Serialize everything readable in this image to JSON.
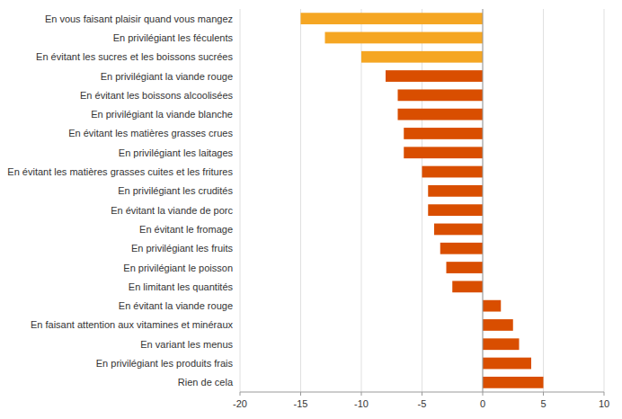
{
  "chart_data": {
    "type": "bar",
    "orientation": "horizontal",
    "categories": [
      "En vous faisant plaisir quand vous mangez",
      "En privilégiant les féculents",
      "En évitant les sucres et les boissons sucrées",
      "En privilégiant la viande rouge",
      "En évitant les boissons alcoolisées",
      "En privilégiant la viande blanche",
      "En évitant les matières grasses crues",
      "En privilégiant les laitages",
      "En évitant les matières grasses cuites et les fritures",
      "En privilégiant les crudités",
      "En évitant la viande de porc",
      "En évitant le fromage",
      "En privilégiant les fruits",
      "En privilégiant le poisson",
      "En limitant les quantités",
      "En évitant la viande rouge",
      "En faisant attention aux vitamines et minéraux",
      "En variant les menus",
      "En privilégiant les produits frais",
      "Rien de cela"
    ],
    "values": [
      -15.0,
      -13.0,
      -10.0,
      -8.0,
      -7.0,
      -7.0,
      -6.5,
      -6.5,
      -5.0,
      -4.5,
      -4.5,
      -4.0,
      -3.5,
      -3.0,
      -2.5,
      1.5,
      2.5,
      3.0,
      4.0,
      5.0
    ],
    "colors": [
      "#f5a623",
      "#f5a623",
      "#f5a623",
      "#d94e00",
      "#d94e00",
      "#d94e00",
      "#d94e00",
      "#d94e00",
      "#d94e00",
      "#d94e00",
      "#d94e00",
      "#d94e00",
      "#d94e00",
      "#d94e00",
      "#d94e00",
      "#d94e00",
      "#d94e00",
      "#d94e00",
      "#d94e00",
      "#d94e00"
    ],
    "xlim": [
      -20,
      10
    ],
    "xticks": [
      -20,
      -15,
      -10,
      -5,
      0,
      5,
      10
    ],
    "grid": true
  }
}
